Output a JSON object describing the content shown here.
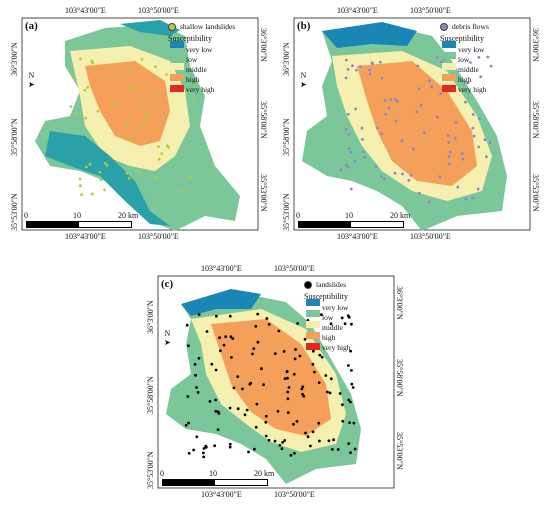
{
  "colors": {
    "very_low": "#1a86b5",
    "low": "#7cc79a",
    "middle": "#f5f0b0",
    "high": "#f4a05a",
    "very_high": "#e8251e"
  },
  "panels": [
    {
      "id": "a",
      "label": "(a)",
      "points_label": "shallow landslides",
      "point_color": "#b9c93a",
      "top_coords": [
        "103°43'00\"E",
        "103°50'00\"E"
      ],
      "bottom_coords": [
        "103°43'00\"E",
        "103°50'00\"E"
      ],
      "left_coords": [
        "36°3'00\"N",
        "35°58'00\"N",
        "35°53'00\"N"
      ],
      "right_coords": [
        "36°3'00\"N",
        "35°58'00\"N",
        "35°53'00\"N"
      ]
    },
    {
      "id": "b",
      "label": "(b)",
      "points_label": "debris flows",
      "point_color": "#8a86c6",
      "top_coords": [
        "103°43'00\"E",
        "103°50'00\"E"
      ],
      "bottom_coords": [
        "103°43'00\"E",
        "103°50'00\"E"
      ],
      "left_coords": [
        "36°3'00\"N",
        "35°58'00\"N",
        "35°53'00\"N"
      ],
      "right_coords": [
        "36°3'00\"N",
        "35°58'00\"N",
        "35°53'00\"N"
      ]
    },
    {
      "id": "c",
      "label": "(c)",
      "points_label": "landslides",
      "point_color": "#000000",
      "top_coords": [
        "103°43'00\"E",
        "103°50'00\"E"
      ],
      "bottom_coords": [
        "103°43'00\"E",
        "103°50'00\"E"
      ],
      "left_coords": [
        "36°3'00\"N",
        "35°58'00\"N",
        "35°53'00\"N"
      ],
      "right_coords": [
        "36°3'00\"N",
        "35°58'00\"N",
        "35°53'00\"N"
      ]
    }
  ],
  "legend": {
    "title": "Susceptibility",
    "classes": [
      "very low",
      "low",
      "middle",
      "high",
      "very high"
    ]
  },
  "north_label": "N",
  "scale": {
    "ticks": [
      "0",
      "10",
      "20 km"
    ]
  }
}
